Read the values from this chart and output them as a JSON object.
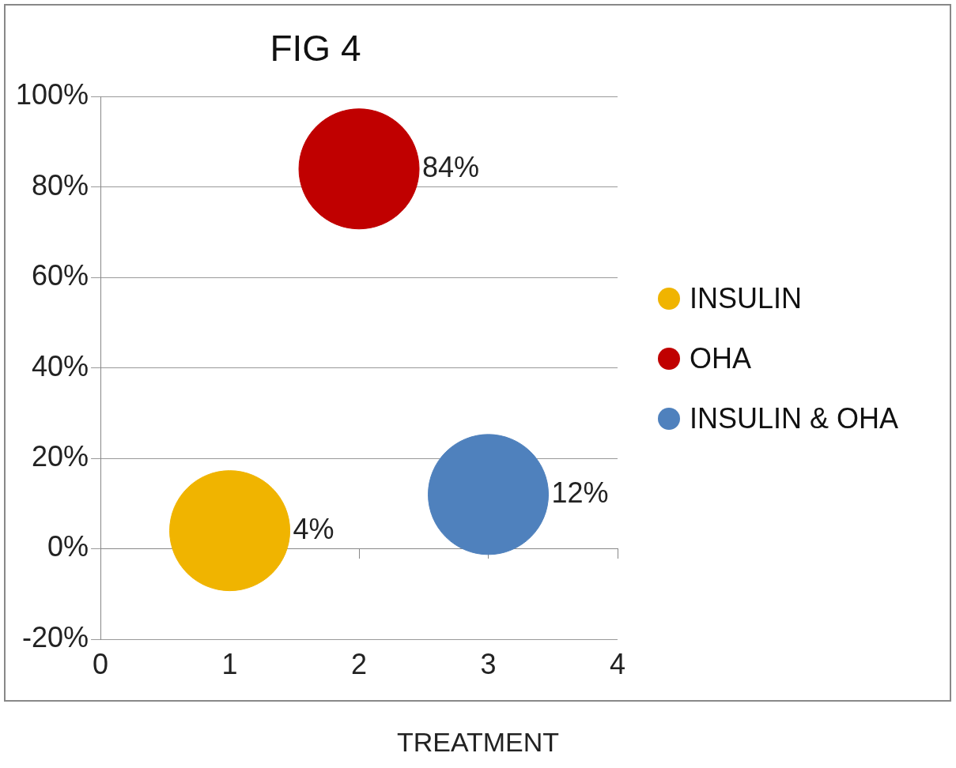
{
  "chart_data": {
    "type": "bubble",
    "title": "FIG 4",
    "xlabel": "TREATMENT",
    "xlim": [
      0,
      4
    ],
    "xticks": [
      0,
      1,
      2,
      3,
      4
    ],
    "ylim": [
      -20,
      100
    ],
    "yticks": [
      {
        "value": -20,
        "label": "-20%"
      },
      {
        "value": 0,
        "label": "0%"
      },
      {
        "value": 20,
        "label": "20%"
      },
      {
        "value": 40,
        "label": "40%"
      },
      {
        "value": 60,
        "label": "60%"
      },
      {
        "value": 80,
        "label": "80%"
      },
      {
        "value": 100,
        "label": "100%"
      }
    ],
    "series": [
      {
        "name": "INSULIN",
        "color": "#f0b400",
        "x": [
          1
        ],
        "values": [
          4
        ],
        "sizes": [
          1
        ],
        "value_labels": [
          "4%"
        ]
      },
      {
        "name": "OHA",
        "color": "#c00000",
        "x": [
          2
        ],
        "values": [
          84
        ],
        "sizes": [
          1
        ],
        "value_labels": [
          "84%"
        ]
      },
      {
        "name": "INSULIN & OHA",
        "color": "#4f81bd",
        "x": [
          3
        ],
        "values": [
          12
        ],
        "sizes": [
          1
        ],
        "value_labels": [
          "12%"
        ]
      }
    ],
    "grid": "y",
    "legend": "right"
  }
}
